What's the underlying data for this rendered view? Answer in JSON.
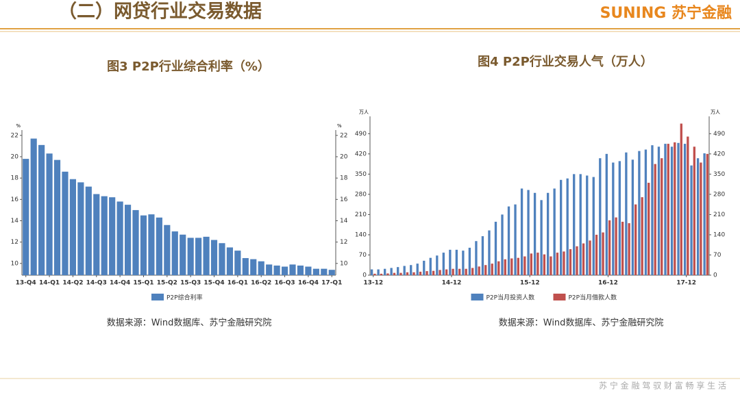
{
  "header": {
    "title": "（二）网贷行业交易数据",
    "logo": "SUNING 苏宁金融"
  },
  "footer": "苏 宁 金 融   驾 驭 财 富   畅 享 生 活",
  "chart_data": [
    {
      "type": "bar",
      "title": "图3 P2P行业综合利率（%）",
      "y_unit": "%",
      "categories": [
        "13-Q4",
        null,
        null,
        "14-Q1",
        null,
        null,
        "14-Q2",
        null,
        null,
        "14-Q3",
        null,
        null,
        "14-Q4",
        null,
        null,
        "15-Q1",
        null,
        null,
        "15-Q2",
        null,
        null,
        "15-Q3",
        null,
        null,
        "15-Q4",
        null,
        null,
        "16-Q1",
        null,
        null,
        "16-Q2",
        null,
        null,
        "16-Q3",
        null,
        null,
        "16-Q4",
        null,
        null,
        "17-Q1"
      ],
      "series": [
        {
          "name": "P2P综合利率",
          "color": "#4f81bd",
          "values": [
            19.8,
            21.7,
            21.1,
            20.3,
            19.7,
            18.6,
            17.9,
            17.6,
            17.2,
            16.5,
            16.3,
            16.2,
            15.8,
            15.5,
            15.0,
            14.5,
            14.6,
            14.3,
            13.6,
            13.0,
            12.7,
            12.4,
            12.4,
            12.5,
            12.2,
            11.9,
            11.5,
            11.2,
            10.5,
            10.4,
            10.2,
            9.9,
            9.8,
            9.7,
            9.9,
            9.8,
            9.7,
            9.5,
            9.5,
            9.4
          ]
        }
      ],
      "ylim": [
        8.9,
        22.5
      ],
      "yticks": [
        10,
        12,
        14,
        16,
        18,
        20,
        22
      ],
      "source": "数据来源：Wind数据库、苏宁金融研究院"
    },
    {
      "type": "bar",
      "title": "图4 P2P行业交易人气（万人）",
      "y_unit": "万人",
      "categories": [
        "13-12",
        null,
        null,
        null,
        null,
        null,
        null,
        null,
        null,
        null,
        null,
        null,
        "14-12",
        null,
        null,
        null,
        null,
        null,
        null,
        null,
        null,
        null,
        null,
        null,
        "15-12",
        null,
        null,
        null,
        null,
        null,
        null,
        null,
        null,
        null,
        null,
        null,
        "16-12",
        null,
        null,
        null,
        null,
        null,
        null,
        null,
        null,
        null,
        null,
        null,
        "17-12",
        null,
        null,
        null
      ],
      "series": [
        {
          "name": "P2P当月投资人数",
          "color": "#4f81bd",
          "values": [
            20,
            20,
            22,
            25,
            28,
            32,
            35,
            40,
            50,
            60,
            68,
            78,
            88,
            88,
            85,
            95,
            118,
            135,
            155,
            185,
            210,
            238,
            245,
            300,
            295,
            285,
            260,
            285,
            300,
            330,
            335,
            350,
            350,
            345,
            340,
            405,
            420,
            390,
            395,
            425,
            400,
            430,
            435,
            450,
            445,
            455,
            445,
            458,
            455,
            380,
            405,
            422
          ]
        },
        {
          "name": "P2P当月借款人数",
          "color": "#c0504d",
          "values": [
            5,
            5,
            6,
            8,
            8,
            10,
            10,
            12,
            14,
            15,
            18,
            20,
            22,
            22,
            22,
            25,
            30,
            35,
            40,
            48,
            55,
            58,
            60,
            65,
            75,
            78,
            72,
            65,
            78,
            82,
            90,
            100,
            110,
            120,
            140,
            148,
            190,
            200,
            185,
            180,
            245,
            270,
            320,
            385,
            405,
            455,
            460,
            525,
            480,
            445,
            390,
            420
          ]
        }
      ],
      "ylim": [
        0,
        550
      ],
      "yticks": [
        0,
        70,
        140,
        210,
        280,
        350,
        420,
        490
      ],
      "source": "数据来源：Wind数据库、苏宁金融研究院"
    }
  ]
}
